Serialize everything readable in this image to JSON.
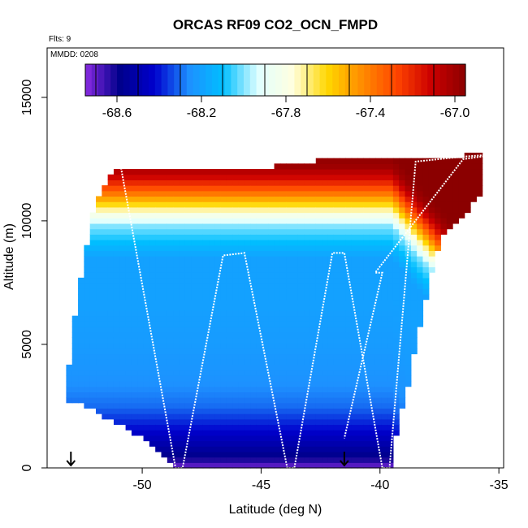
{
  "chart_data": {
    "type": "heatmap",
    "title": "ORCAS RF09 CO2_OCN_FMPD",
    "flights_note": "Flts: 9",
    "date_note": "MMDD: 0208",
    "xlabel": "Latitude (deg N)",
    "ylabel": "Altitude (m)",
    "xlim": [
      -54,
      -34.8
    ],
    "ylim": [
      0,
      17000
    ],
    "x_ticks": [
      -50,
      -45,
      -40,
      -35
    ],
    "x_tick_labels": [
      "-50",
      "-45",
      "-40",
      "-35"
    ],
    "y_ticks": [
      0,
      5000,
      10000,
      15000
    ],
    "y_tick_labels": [
      "0",
      "5000",
      "10000",
      "15000"
    ],
    "colorbar": {
      "range": [
        -68.75,
        -66.95
      ],
      "ticks": [
        -68.6,
        -68.2,
        -67.8,
        -67.4,
        -67.0
      ],
      "tick_labels": [
        "-68.6",
        "-68.2",
        "-67.8",
        "-67.4",
        "-67.0"
      ]
    },
    "colormap": [
      "#8a2be2",
      "#00008b",
      "#0000cd",
      "#1e90ff",
      "#00bfff",
      "#e0ffff",
      "#ffffe0",
      "#ffd700",
      "#ff8c00",
      "#ff4500",
      "#cc0000",
      "#8b0000"
    ],
    "field_outline": [
      [
        -53.2,
        3100
      ],
      [
        -52.8,
        6300
      ],
      [
        -52.3,
        9200
      ],
      [
        -52.0,
        10800
      ],
      [
        -51.2,
        12200
      ],
      [
        -44.5,
        12200
      ],
      [
        -42.0,
        12500
      ],
      [
        -38.5,
        12500
      ],
      [
        -35.8,
        12700
      ],
      [
        -35.8,
        11000
      ],
      [
        -37.5,
        9200
      ],
      [
        -38.5,
        5000
      ],
      [
        -38.8,
        3500
      ],
      [
        -39.5,
        500
      ],
      [
        -39.5,
        0
      ],
      [
        -48.5,
        0
      ],
      [
        -49.0,
        500
      ],
      [
        -50.5,
        1500
      ],
      [
        -52.0,
        2300
      ],
      [
        -53.2,
        2800
      ]
    ],
    "field_profile_altitude": [
      0,
      400,
      1000,
      1700,
      2500,
      3500,
      5000,
      7000,
      8500,
      9800,
      10300,
      10800,
      11200,
      11700,
      12200,
      12700
    ],
    "field_profile_value": [
      -68.72,
      -68.6,
      -68.5,
      -68.4,
      -68.3,
      -68.25,
      -68.22,
      -68.2,
      -68.2,
      -68.0,
      -67.8,
      -67.55,
      -67.35,
      -67.15,
      -67.0,
      -66.95
    ],
    "flight_track": {
      "lat": [
        -51.2,
        -50.9,
        -48.6,
        -48.3,
        -46.6,
        -45.7,
        -43.9,
        -43.6,
        -42.0,
        -41.5,
        -39.9,
        -39.6,
        -38.5,
        -36.5,
        -35.0,
        -36.5,
        -40.2,
        -39.9,
        -41.5
      ],
      "alt": [
        12200,
        12200,
        0,
        0,
        8600,
        8700,
        0,
        0,
        8700,
        8700,
        0,
        0,
        12400,
        12600,
        12700,
        12500,
        7900,
        7900,
        1200
      ]
    },
    "markers": [
      {
        "lat": -53.0,
        "type": "down-arrow"
      },
      {
        "lat": -41.5,
        "type": "down-arrow"
      }
    ]
  }
}
